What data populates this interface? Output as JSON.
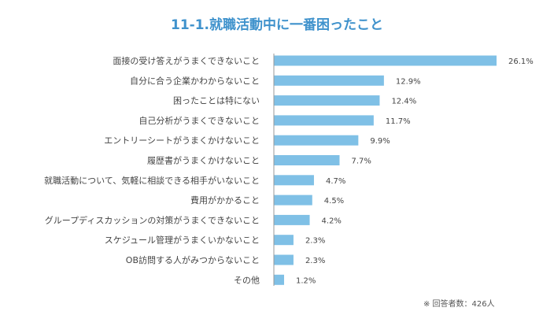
{
  "chart_data": {
    "type": "bar",
    "orientation": "horizontal",
    "title": "11-1.就職活動中に一番困ったこと",
    "categories": [
      "面接の受け答えがうまくできないこと",
      "自分に合う企業かわからないこと",
      "困ったことは特にない",
      "自己分析がうまくできないこと",
      "エントリーシートがうまくかけないこと",
      "履歴書がうまくかけないこと",
      "就職活動について、気軽に相談できる相手がいないこと",
      "費用がかかること",
      "グループディスカッションの対策がうまくできないこと",
      "スケジュール管理がうまくいかないこと",
      "OB訪問する人がみつからないこと",
      "その他"
    ],
    "values": [
      26.1,
      12.9,
      12.4,
      11.7,
      9.9,
      7.7,
      4.7,
      4.5,
      4.2,
      2.3,
      2.3,
      1.2
    ],
    "value_labels": [
      "26.1%",
      "12.9%",
      "12.4%",
      "11.7%",
      "9.9%",
      "7.7%",
      "4.7%",
      "4.5%",
      "4.2%",
      "2.3%",
      "2.3%",
      "1.2%"
    ],
    "xlim": [
      0,
      26.1
    ],
    "grid": false,
    "bar_color": "#7fc0e6",
    "title_color": "#3f92cc",
    "note": "※ 回答者数：426人"
  }
}
